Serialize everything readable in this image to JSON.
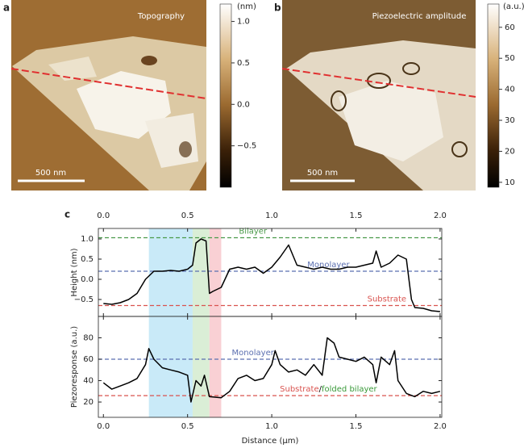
{
  "chart_data": [
    {
      "type": "image",
      "panel": "a",
      "title": "Topography",
      "scale_bar": "500 nm",
      "colorbar_label": "(nm)",
      "clim": [
        -1.0,
        1.21
      ],
      "cticks": [
        {
          "value": 1.0,
          "label": "1.0"
        },
        {
          "value": 0.5,
          "label": "0.5"
        },
        {
          "value": 0.0,
          "label": "0.0"
        },
        {
          "value": -0.5,
          "label": "−0.5"
        }
      ]
    },
    {
      "type": "image",
      "panel": "b",
      "title": "Piezoelectric amplitude",
      "scale_bar": "500 nm",
      "colorbar_label": "(a.u.)",
      "clim": [
        8.4,
        67.5
      ],
      "cticks": [
        60,
        50,
        40,
        30,
        20,
        10
      ]
    },
    {
      "type": "line",
      "panel": "c",
      "ylabel": "Height (nm)",
      "color": "#000000",
      "xlim": [
        -0.03,
        2.01
      ],
      "ylim": [
        -0.92,
        1.26
      ],
      "xticks": [
        {
          "value": 0.0,
          "label": "0.0"
        },
        {
          "value": 0.5,
          "label": "0.5"
        },
        {
          "value": 1.0,
          "label": "1.0"
        },
        {
          "value": 1.5,
          "label": "1.5"
        },
        {
          "value": 2.0,
          "label": "2.0"
        }
      ],
      "yticks": [
        {
          "value": -0.5,
          "label": "−0.5"
        },
        {
          "value": 0.0,
          "label": "0.0"
        },
        {
          "value": 0.5,
          "label": "0.5"
        },
        {
          "value": 1.0,
          "label": "1.0"
        }
      ],
      "bands": [
        {
          "x": [
            0.27,
            0.53
          ],
          "color": "#bfe6f7"
        },
        {
          "x": [
            0.53,
            0.63
          ],
          "color": "#d3ebcf"
        },
        {
          "x": [
            0.63,
            0.7
          ],
          "color": "#f8c8cd"
        }
      ],
      "reference_lines": [
        {
          "value": 1.03,
          "color": "#4a9a4a",
          "label": [
            {
              "text": "Bilayer",
              "color": "#4a9a4a"
            }
          ]
        },
        {
          "value": 0.2,
          "color": "#5b6fb0",
          "label": [
            {
              "text": "Monolayer",
              "color": "#5b6fb0"
            }
          ]
        },
        {
          "value": -0.65,
          "color": "#d9534f",
          "label": [
            {
              "text": "Substrate",
              "color": "#d9534f"
            }
          ]
        }
      ],
      "x": [
        0.0,
        0.05,
        0.1,
        0.15,
        0.2,
        0.25,
        0.3,
        0.35,
        0.4,
        0.45,
        0.5,
        0.53,
        0.55,
        0.58,
        0.61,
        0.63,
        0.65,
        0.7,
        0.75,
        0.8,
        0.85,
        0.9,
        0.95,
        1.0,
        1.05,
        1.1,
        1.15,
        1.2,
        1.25,
        1.3,
        1.35,
        1.4,
        1.45,
        1.5,
        1.55,
        1.6,
        1.62,
        1.65,
        1.7,
        1.75,
        1.8,
        1.83,
        1.85,
        1.9,
        1.95,
        2.0
      ],
      "values": [
        -0.6,
        -0.62,
        -0.58,
        -0.5,
        -0.35,
        0.0,
        0.2,
        0.2,
        0.22,
        0.2,
        0.25,
        0.35,
        0.9,
        1.0,
        0.95,
        -0.35,
        -0.3,
        -0.2,
        0.25,
        0.3,
        0.25,
        0.3,
        0.15,
        0.3,
        0.55,
        0.85,
        0.35,
        0.3,
        0.25,
        0.3,
        0.25,
        0.25,
        0.3,
        0.3,
        0.35,
        0.4,
        0.7,
        0.3,
        0.4,
        0.6,
        0.5,
        -0.5,
        -0.7,
        -0.72,
        -0.78,
        -0.8
      ]
    },
    {
      "type": "line",
      "ylabel": "Piezoresponse (a.u.)",
      "xlabel": "Distance (μm)",
      "color": "#000000",
      "xlim": [
        -0.03,
        2.01
      ],
      "ylim": [
        5.7,
        100
      ],
      "xticks": [
        {
          "value": 0.0,
          "label": "0.0"
        },
        {
          "value": 0.5,
          "label": "0.5"
        },
        {
          "value": 1.0,
          "label": "1.0"
        },
        {
          "value": 1.5,
          "label": "1.5"
        },
        {
          "value": 2.0,
          "label": "2.0"
        }
      ],
      "yticks": [
        20,
        40,
        60,
        80
      ],
      "bands": [
        {
          "x": [
            0.27,
            0.53
          ],
          "color": "#bfe6f7"
        },
        {
          "x": [
            0.53,
            0.63
          ],
          "color": "#d3ebcf"
        },
        {
          "x": [
            0.63,
            0.7
          ],
          "color": "#f8c8cd"
        }
      ],
      "reference_lines": [
        {
          "value": 60,
          "color": "#5b6fb0",
          "label": [
            {
              "text": "Monolayer",
              "color": "#5b6fb0"
            }
          ]
        },
        {
          "value": 26,
          "color": "#d9534f",
          "label": [
            {
              "text": "Substrate",
              "color": "#d9534f"
            },
            {
              "text": "/",
              "color": "#000000"
            },
            {
              "text": "folded bilayer",
              "color": "#3a9a3a"
            }
          ]
        }
      ],
      "x": [
        0.0,
        0.05,
        0.1,
        0.15,
        0.2,
        0.25,
        0.27,
        0.3,
        0.35,
        0.4,
        0.45,
        0.5,
        0.52,
        0.55,
        0.58,
        0.6,
        0.63,
        0.7,
        0.75,
        0.8,
        0.85,
        0.9,
        0.95,
        1.0,
        1.02,
        1.05,
        1.1,
        1.15,
        1.2,
        1.25,
        1.3,
        1.33,
        1.37,
        1.4,
        1.45,
        1.5,
        1.55,
        1.6,
        1.62,
        1.65,
        1.7,
        1.73,
        1.75,
        1.8,
        1.85,
        1.9,
        1.95,
        2.0
      ],
      "values": [
        38,
        32,
        35,
        38,
        42,
        55,
        70,
        60,
        52,
        50,
        48,
        45,
        20,
        40,
        35,
        45,
        25,
        24,
        30,
        42,
        45,
        40,
        42,
        55,
        68,
        55,
        48,
        50,
        45,
        55,
        45,
        80,
        75,
        62,
        60,
        58,
        62,
        55,
        38,
        62,
        55,
        68,
        40,
        28,
        25,
        30,
        28,
        30
      ]
    }
  ]
}
